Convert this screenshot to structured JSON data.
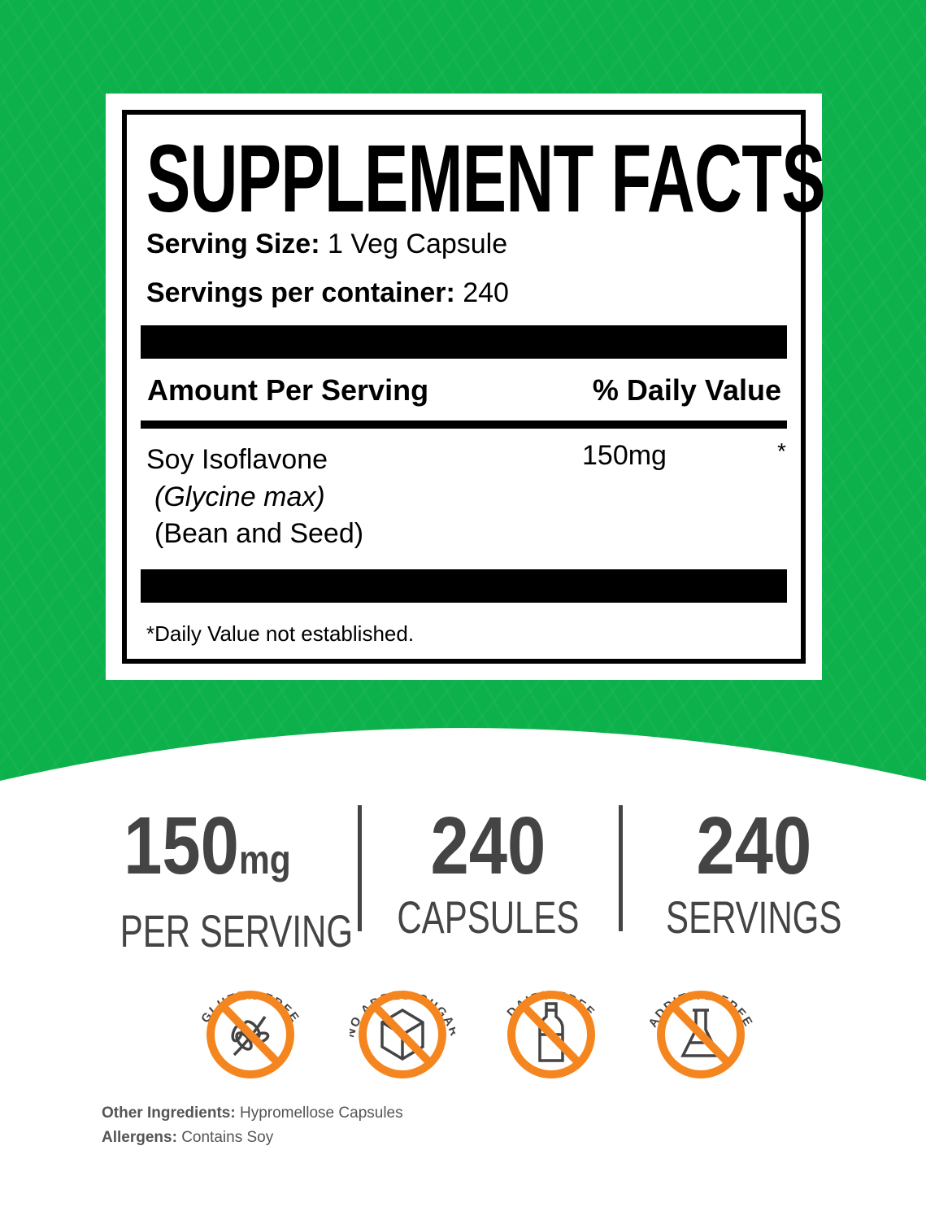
{
  "colors": {
    "background_green": "#0db14b",
    "badge_orange": "#f5861f",
    "stat_gray": "#444444"
  },
  "facts": {
    "title": "SUPPLEMENT FACTS",
    "serving_size_label": "Serving Size:",
    "serving_size_value": "1 Veg Capsule",
    "servings_label": "Servings per container:",
    "servings_value": "240",
    "amount_header": "Amount Per Serving",
    "dv_header": "% Daily Value",
    "ingredient": {
      "name": "Soy Isoflavone",
      "latin": "(Glycine max)",
      "part": "(Bean and Seed)",
      "amount": "150mg",
      "dv": "*"
    },
    "footnote": "*Daily Value not established."
  },
  "stats": [
    {
      "value": "150",
      "unit": "mg",
      "label": "PER SERVING"
    },
    {
      "value": "240",
      "unit": "",
      "label": "CAPSULES"
    },
    {
      "value": "240",
      "unit": "",
      "label": "SERVINGS"
    }
  ],
  "badges": [
    {
      "label": "GLUTEN FREE",
      "icon": "wheat-icon"
    },
    {
      "label": "NO ADDED SUGAR",
      "icon": "sugar-cube-icon"
    },
    {
      "label": "DAIRY FREE",
      "icon": "milk-bottle-icon"
    },
    {
      "label": "ADDITIVE FREE",
      "icon": "flask-icon"
    }
  ],
  "other_ingredients": {
    "label": "Other Ingredients:",
    "value": "Hypromellose Capsules"
  },
  "allergens": {
    "label": "Allergens:",
    "value": "Contains Soy"
  }
}
